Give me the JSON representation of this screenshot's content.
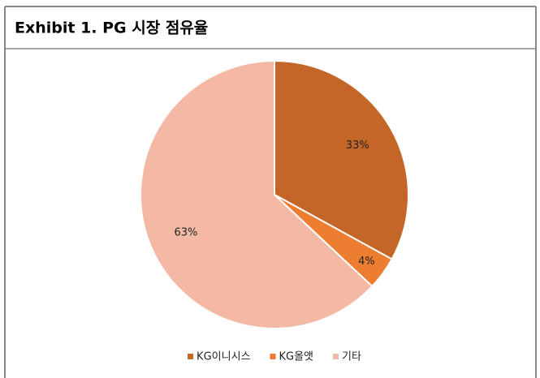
{
  "chart_data": {
    "type": "pie",
    "title": "Exhibit 1. PG 시장 점유율",
    "categories": [
      "KG이니시스",
      "KG올앳",
      "기타"
    ],
    "values": [
      33,
      4,
      63
    ],
    "value_labels": [
      "33%",
      "4%",
      "63%"
    ],
    "colors": [
      "#c46628",
      "#ed7d31",
      "#f4b9a4"
    ],
    "legend": "bottom"
  }
}
